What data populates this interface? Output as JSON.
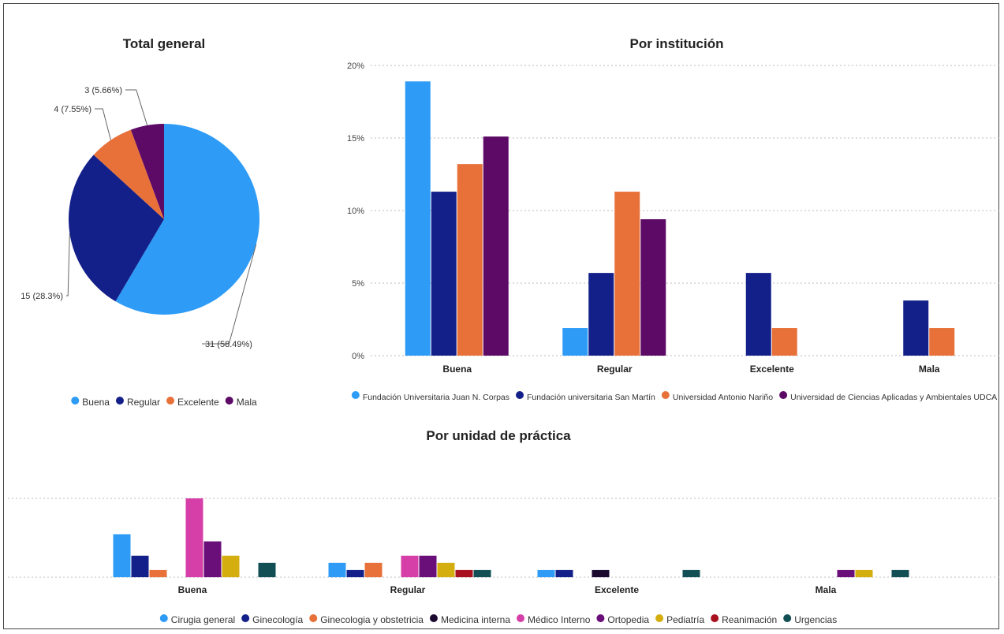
{
  "chart_data": [
    {
      "type": "pie",
      "title": "Total general",
      "slices": [
        {
          "label": "Buena",
          "value": 31,
          "percent": 58.49,
          "data_label": "31 (58.49%)",
          "color": "#2E9BF6"
        },
        {
          "label": "Regular",
          "value": 15,
          "percent": 28.3,
          "data_label": "15 (28.3%)",
          "color": "#14208A"
        },
        {
          "label": "Excelente",
          "value": 4,
          "percent": 7.55,
          "data_label": "4 (7.55%)",
          "color": "#E8713A"
        },
        {
          "label": "Mala",
          "value": 3,
          "percent": 5.66,
          "data_label": "3 (5.66%)",
          "color": "#5C0A66"
        }
      ],
      "legend_position": "bottom"
    },
    {
      "type": "bar",
      "title": "Por institución",
      "categories": [
        "Buena",
        "Regular",
        "Excelente",
        "Mala"
      ],
      "y_ticks": [
        "20%",
        "15%",
        "10%",
        "5%",
        "0%"
      ],
      "ylim": [
        0,
        20
      ],
      "grid": true,
      "legend_position": "bottom",
      "series": [
        {
          "name": "Fundación Universitaria Juan N. Corpas",
          "color": "#2E9BF6",
          "values": [
            18.9,
            1.9,
            0,
            0
          ]
        },
        {
          "name": "Fundación universitaria San Martín",
          "color": "#14208A",
          "values": [
            11.3,
            5.7,
            5.7,
            3.8
          ]
        },
        {
          "name": "Universidad Antonio Nariño",
          "color": "#E8713A",
          "values": [
            13.2,
            11.3,
            1.9,
            1.9
          ]
        },
        {
          "name": "Universidad de Ciencias Aplicadas y Ambientales UDCA",
          "color": "#5C0A66",
          "values": [
            15.1,
            9.4,
            0,
            0
          ]
        }
      ]
    },
    {
      "type": "bar",
      "title": "Por unidad de práctica",
      "categories": [
        "Buena",
        "Regular",
        "Excelente",
        "Mala"
      ],
      "ylim": [
        0,
        11
      ],
      "grid": true,
      "legend_position": "bottom",
      "series": [
        {
          "name": "Cirugia general",
          "color": "#2E9BF6",
          "values": [
            6,
            2,
            1,
            0
          ]
        },
        {
          "name": "Ginecología",
          "color": "#14208A",
          "values": [
            3,
            1,
            1,
            0
          ]
        },
        {
          "name": "Ginecologia y obstetricia",
          "color": "#E8713A",
          "values": [
            1,
            2,
            0,
            0
          ]
        },
        {
          "name": "Medicina interna",
          "color": "#1B0A2E",
          "values": [
            0,
            0,
            1,
            0
          ]
        },
        {
          "name": "Médico Interno",
          "color": "#D63FA8",
          "values": [
            11,
            3,
            0,
            0
          ]
        },
        {
          "name": "Ortopedia",
          "color": "#6A0E7A",
          "values": [
            5,
            3,
            0,
            1
          ]
        },
        {
          "name": "Pediatría",
          "color": "#D4AD0E",
          "values": [
            3,
            2,
            0,
            1
          ]
        },
        {
          "name": "Reanimación",
          "color": "#A8101E",
          "values": [
            0,
            1,
            0,
            0
          ]
        },
        {
          "name": "Urgencias",
          "color": "#114F55",
          "values": [
            2,
            1,
            1,
            1
          ]
        }
      ]
    }
  ]
}
